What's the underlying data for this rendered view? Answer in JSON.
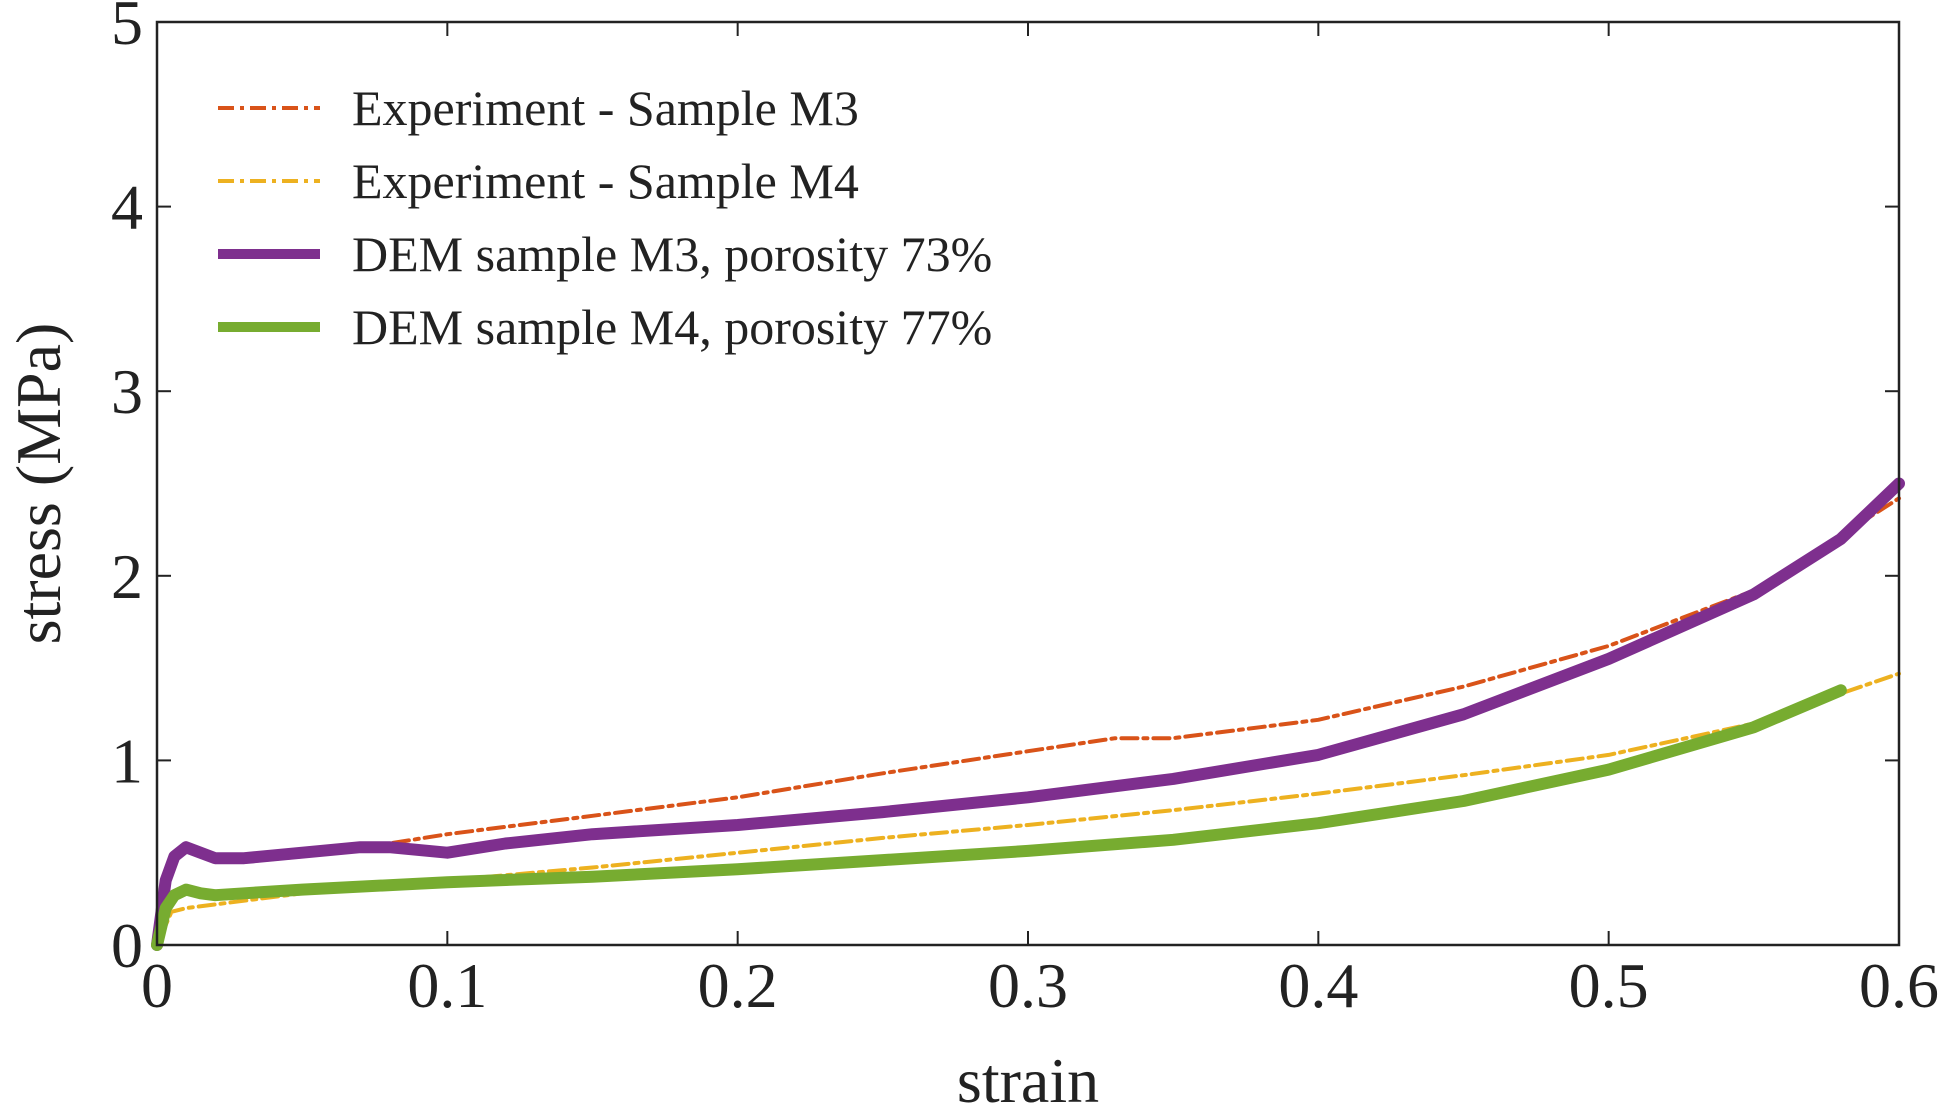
{
  "chart_data": {
    "type": "line",
    "xlabel": "strain",
    "ylabel": "stress (MPa)",
    "xlim": [
      0,
      0.6
    ],
    "ylim": [
      0,
      5
    ],
    "xticks": [
      0,
      0.1,
      0.2,
      0.3,
      0.4,
      0.5,
      0.6
    ],
    "xtick_labels": [
      "0",
      "0.1",
      "0.2",
      "0.3",
      "0.4",
      "0.5",
      "0.6"
    ],
    "yticks": [
      0,
      1,
      2,
      3,
      4,
      5
    ],
    "ytick_labels": [
      "0",
      "1",
      "2",
      "3",
      "4",
      "5"
    ],
    "grid": false,
    "legend_position": "top-left",
    "series": [
      {
        "name": "Experiment - Sample M3",
        "color": "#d95319",
        "style": "dashdot",
        "x": [
          0,
          0.005,
          0.01,
          0.015,
          0.02,
          0.03,
          0.05,
          0.08,
          0.1,
          0.15,
          0.2,
          0.25,
          0.3,
          0.33,
          0.35,
          0.38,
          0.4,
          0.45,
          0.5,
          0.55,
          0.6
        ],
        "y": [
          0,
          0.45,
          0.55,
          0.5,
          0.47,
          0.45,
          0.48,
          0.55,
          0.6,
          0.7,
          0.8,
          0.93,
          1.05,
          1.12,
          1.12,
          1.18,
          1.22,
          1.4,
          1.62,
          1.92,
          2.42
        ]
      },
      {
        "name": "Experiment - Sample M4",
        "color": "#edb120",
        "style": "dashdot",
        "x": [
          0,
          0.005,
          0.01,
          0.02,
          0.05,
          0.1,
          0.15,
          0.2,
          0.25,
          0.3,
          0.35,
          0.4,
          0.45,
          0.5,
          0.55,
          0.6
        ],
        "y": [
          0,
          0.18,
          0.2,
          0.22,
          0.28,
          0.35,
          0.42,
          0.5,
          0.58,
          0.65,
          0.73,
          0.82,
          0.92,
          1.03,
          1.2,
          1.47
        ]
      },
      {
        "name": "DEM sample M3, porosity 73%",
        "color": "#7e2f8e",
        "style": "solid",
        "x": [
          0,
          0.003,
          0.006,
          0.01,
          0.015,
          0.02,
          0.03,
          0.05,
          0.07,
          0.08,
          0.1,
          0.12,
          0.15,
          0.2,
          0.25,
          0.3,
          0.35,
          0.4,
          0.45,
          0.5,
          0.55,
          0.58,
          0.6
        ],
        "y": [
          0,
          0.35,
          0.48,
          0.53,
          0.5,
          0.47,
          0.47,
          0.5,
          0.53,
          0.53,
          0.5,
          0.55,
          0.6,
          0.65,
          0.72,
          0.8,
          0.9,
          1.03,
          1.25,
          1.55,
          1.9,
          2.2,
          2.5
        ]
      },
      {
        "name": "DEM sample M4, porosity 77%",
        "color": "#77ac30",
        "style": "solid",
        "x": [
          0,
          0.003,
          0.006,
          0.01,
          0.015,
          0.02,
          0.03,
          0.05,
          0.1,
          0.15,
          0.2,
          0.25,
          0.3,
          0.35,
          0.4,
          0.45,
          0.5,
          0.55,
          0.58
        ],
        "y": [
          0,
          0.2,
          0.27,
          0.3,
          0.28,
          0.27,
          0.28,
          0.3,
          0.34,
          0.37,
          0.41,
          0.46,
          0.51,
          0.57,
          0.66,
          0.78,
          0.95,
          1.18,
          1.38
        ]
      }
    ]
  }
}
